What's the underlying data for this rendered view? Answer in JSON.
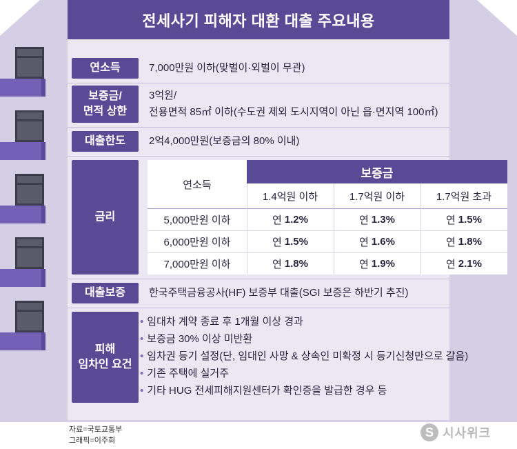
{
  "title": "전세사기 피해자 대환 대출 주요내용",
  "rows": {
    "income": {
      "label": "연소득",
      "value": "7,000만원 이하(맞벌이·외벌이 무관)"
    },
    "deposit": {
      "label_line1": "보증금/",
      "label_line2": "면적 상한",
      "value_line1": "3억원/",
      "value_line2": "전용면적 85㎡ 이하(수도권 제외 도시지역이 아닌 읍·면지역 100㎡)"
    },
    "limit": {
      "label": "대출한도",
      "value": "2억4,000만원(보증금의 80% 이내)"
    },
    "rate": {
      "label": "금리"
    },
    "guarantee": {
      "label": "대출보증",
      "value": "한국주택금융공사(HF) 보증부 대출(SGI 보증은 하반기 추진)"
    },
    "requirements": {
      "label_line1": "피해",
      "label_line2": "임차인 요건",
      "items": [
        "임대차 계약 종료 후 1개월 이상 경과",
        "보증금 30% 이상 미반환",
        "임차권 등기 설정(단, 임대인 사망 & 상속인 미확정 시 등기신청만으로 갈음)",
        "기존 주택에 실거주",
        "기타 HUG 전세피해지원센터가 확인증을 발급한 경우 등"
      ]
    }
  },
  "rate_table": {
    "income_header": "연소득",
    "deposit_header": "보증금",
    "deposit_cols": [
      "1.4억원 이하",
      "1.7억원 이하",
      "1.7억원 초과"
    ],
    "rows": [
      {
        "income": "5,000만원 이하",
        "prefix": "연",
        "rates": [
          "1.2%",
          "1.3%",
          "1.5%"
        ]
      },
      {
        "income": "6,000만원 이하",
        "prefix": "연",
        "rates": [
          "1.5%",
          "1.6%",
          "1.8%"
        ]
      },
      {
        "income": "7,000만원 이하",
        "prefix": "연",
        "rates": [
          "1.8%",
          "1.9%",
          "2.1%"
        ]
      }
    ]
  },
  "footer": {
    "source": "자료=국토교통부",
    "graphic": "그래픽=이주희"
  },
  "logo": {
    "text": "시사위크",
    "mark": "S"
  },
  "colors": {
    "primary": "#594a96",
    "wall": "#d4cfe5",
    "panel": "#ebe8f4",
    "balcony": "#7260b7"
  }
}
